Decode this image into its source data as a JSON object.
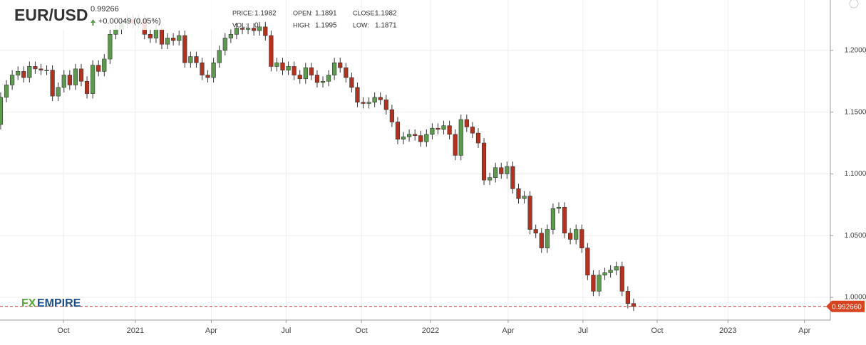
{
  "header": {
    "symbol": "EUR/USD",
    "price": "0.99266",
    "change": "+0.00049 (0.05%)",
    "info": [
      [
        "PRICE:",
        "1.1982"
      ],
      [
        "OPEN:",
        "1.1891"
      ],
      [
        "CLOSE:",
        "1.1982"
      ],
      [
        "VOL:",
        "0"
      ],
      [
        "HIGH:",
        "1.1995"
      ],
      [
        "LOW:",
        "1.1871"
      ]
    ],
    "logo": [
      "FX",
      "EMPIRE"
    ]
  },
  "chart_data": {
    "type": "candlestick",
    "up_color": "#5c9a4e",
    "down_color": "#b3321f",
    "grid": true,
    "xlim": [
      -0.12,
      144.2
    ],
    "ylim": [
      0.9816,
      1.2408
    ],
    "xticks": [
      {
        "value": 10.9,
        "label": "Oct"
      },
      {
        "value": 23.4,
        "label": "2021"
      },
      {
        "value": 36.6,
        "label": "Apr"
      },
      {
        "value": 49.6,
        "label": "Jul"
      },
      {
        "value": 62.7,
        "label": "Oct"
      },
      {
        "value": 74.7,
        "label": "2022"
      },
      {
        "value": 88.2,
        "label": "Apr"
      },
      {
        "value": 101.2,
        "label": "Jul"
      },
      {
        "value": 114.1,
        "label": "Oct"
      },
      {
        "value": 126.4,
        "label": "2023"
      },
      {
        "value": 139.7,
        "label": "Apr"
      }
    ],
    "yticks": [
      {
        "value": 1.0,
        "label": "1.0000"
      },
      {
        "value": 1.05,
        "label": "1.0500"
      },
      {
        "value": 1.1,
        "label": "1.1000"
      },
      {
        "value": 1.15,
        "label": "1.1500"
      },
      {
        "value": 1.2,
        "label": "1.2000"
      }
    ],
    "last_price": {
      "value": 0.99266,
      "label": "0.992660"
    },
    "x": [
      0,
      1,
      2,
      3,
      4,
      5,
      6,
      7,
      8,
      9,
      10,
      11,
      12,
      13,
      14,
      15,
      16,
      17,
      18,
      19,
      20,
      21,
      22,
      23,
      24,
      25,
      26,
      27,
      28,
      29,
      30,
      31,
      32,
      33,
      34,
      35,
      36,
      37,
      38,
      39,
      40,
      41,
      42,
      43,
      44,
      45,
      46,
      47,
      48,
      49,
      50,
      51,
      52,
      53,
      54,
      55,
      56,
      57,
      58,
      59,
      60,
      61,
      62,
      63,
      64,
      65,
      66,
      67,
      68,
      69,
      70,
      71,
      72,
      73,
      74,
      75,
      76,
      77,
      78,
      79,
      80,
      81,
      82,
      83,
      84,
      85,
      86,
      87,
      88,
      89,
      90,
      91,
      92,
      93,
      94,
      95,
      96,
      97,
      98,
      99,
      100,
      101,
      102,
      103,
      104,
      105,
      106,
      107,
      108,
      109,
      110
    ],
    "open": [
      1.14,
      1.162,
      1.172,
      1.18,
      1.183,
      1.178,
      1.187,
      1.185,
      1.184,
      1.184,
      1.163,
      1.17,
      1.18,
      1.172,
      1.185,
      1.175,
      1.165,
      1.188,
      1.183,
      1.193,
      1.213,
      1.217,
      1.222,
      1.225,
      1.222,
      1.225,
      1.213,
      1.21,
      1.217,
      1.205,
      1.21,
      1.208,
      1.212,
      1.19,
      1.195,
      1.19,
      1.18,
      1.178,
      1.19,
      1.2,
      1.21,
      1.213,
      1.218,
      1.217,
      1.218,
      1.216,
      1.219,
      1.212,
      1.187,
      1.19,
      1.184,
      1.187,
      1.18,
      1.177,
      1.186,
      1.18,
      1.174,
      1.175,
      1.18,
      1.19,
      1.186,
      1.178,
      1.17,
      1.158,
      1.157,
      1.158,
      1.162,
      1.16,
      1.152,
      1.142,
      1.128,
      1.13,
      1.132,
      1.131,
      1.126,
      1.132,
      1.137,
      1.136,
      1.139,
      1.132,
      1.115,
      1.144,
      1.138,
      1.133,
      1.125,
      1.095,
      1.097,
      1.105,
      1.1,
      1.106,
      1.088,
      1.08,
      1.082,
      1.055,
      1.052,
      1.04,
      1.055,
      1.072,
      1.073,
      1.052,
      1.047,
      1.055,
      1.04,
      1.018,
      1.005,
      1.018,
      1.02,
      1.022,
      1.025,
      1.005,
      0.995
    ],
    "high": [
      1.166,
      1.176,
      1.184,
      1.187,
      1.187,
      1.191,
      1.191,
      1.189,
      1.188,
      1.188,
      1.174,
      1.184,
      1.184,
      1.189,
      1.189,
      1.179,
      1.192,
      1.192,
      1.197,
      1.217,
      1.221,
      1.226,
      1.229,
      1.229,
      1.229,
      1.229,
      1.217,
      1.221,
      1.221,
      1.214,
      1.214,
      1.216,
      1.216,
      1.199,
      1.199,
      1.194,
      1.184,
      1.194,
      1.204,
      1.214,
      1.217,
      1.222,
      1.222,
      1.222,
      1.222,
      1.223,
      1.223,
      1.216,
      1.194,
      1.194,
      1.191,
      1.191,
      1.184,
      1.19,
      1.19,
      1.184,
      1.179,
      1.184,
      1.194,
      1.194,
      1.19,
      1.182,
      1.174,
      1.162,
      1.162,
      1.166,
      1.166,
      1.164,
      1.156,
      1.146,
      1.134,
      1.136,
      1.136,
      1.135,
      1.136,
      1.141,
      1.141,
      1.143,
      1.143,
      1.136,
      1.148,
      1.148,
      1.142,
      1.137,
      1.129,
      1.101,
      1.109,
      1.109,
      1.11,
      1.11,
      1.092,
      1.086,
      1.086,
      1.059,
      1.056,
      1.059,
      1.076,
      1.077,
      1.077,
      1.056,
      1.059,
      1.059,
      1.044,
      1.022,
      1.022,
      1.024,
      1.026,
      1.029,
      1.029,
      1.009,
      0.999
    ],
    "low": [
      1.136,
      1.158,
      1.168,
      1.176,
      1.174,
      1.174,
      1.181,
      1.18,
      1.18,
      1.159,
      1.159,
      1.166,
      1.168,
      1.168,
      1.171,
      1.161,
      1.161,
      1.179,
      1.179,
      1.189,
      1.209,
      1.213,
      1.218,
      1.218,
      1.218,
      1.209,
      1.206,
      1.206,
      1.201,
      1.201,
      1.204,
      1.204,
      1.186,
      1.186,
      1.186,
      1.176,
      1.174,
      1.174,
      1.186,
      1.196,
      1.206,
      1.209,
      1.213,
      1.213,
      1.212,
      1.212,
      1.208,
      1.183,
      1.183,
      1.18,
      1.18,
      1.176,
      1.173,
      1.173,
      1.176,
      1.17,
      1.17,
      1.171,
      1.176,
      1.182,
      1.174,
      1.166,
      1.154,
      1.153,
      1.153,
      1.154,
      1.156,
      1.148,
      1.138,
      1.124,
      1.124,
      1.126,
      1.127,
      1.122,
      1.122,
      1.128,
      1.132,
      1.132,
      1.128,
      1.111,
      1.111,
      1.134,
      1.129,
      1.121,
      1.091,
      1.091,
      1.093,
      1.096,
      1.096,
      1.084,
      1.076,
      1.076,
      1.051,
      1.048,
      1.036,
      1.036,
      1.051,
      1.068,
      1.048,
      1.043,
      1.043,
      1.036,
      1.014,
      1.001,
      1.001,
      1.014,
      1.016,
      1.018,
      1.001,
      0.991,
      0.989
    ],
    "close": [
      1.162,
      1.172,
      1.18,
      1.183,
      1.178,
      1.187,
      1.185,
      1.184,
      1.184,
      1.163,
      1.17,
      1.18,
      1.172,
      1.185,
      1.175,
      1.165,
      1.188,
      1.183,
      1.193,
      1.213,
      1.217,
      1.222,
      1.225,
      1.222,
      1.225,
      1.213,
      1.21,
      1.217,
      1.205,
      1.21,
      1.208,
      1.212,
      1.19,
      1.195,
      1.19,
      1.18,
      1.178,
      1.19,
      1.2,
      1.21,
      1.213,
      1.218,
      1.217,
      1.218,
      1.216,
      1.219,
      1.212,
      1.187,
      1.19,
      1.184,
      1.187,
      1.18,
      1.177,
      1.186,
      1.18,
      1.174,
      1.175,
      1.18,
      1.19,
      1.186,
      1.178,
      1.17,
      1.158,
      1.157,
      1.158,
      1.162,
      1.16,
      1.152,
      1.142,
      1.128,
      1.13,
      1.132,
      1.131,
      1.126,
      1.132,
      1.137,
      1.136,
      1.139,
      1.132,
      1.115,
      1.144,
      1.138,
      1.133,
      1.125,
      1.095,
      1.097,
      1.105,
      1.1,
      1.106,
      1.088,
      1.08,
      1.082,
      1.055,
      1.052,
      1.04,
      1.055,
      1.072,
      1.073,
      1.052,
      1.047,
      1.055,
      1.04,
      1.018,
      1.005,
      1.018,
      1.02,
      1.022,
      1.025,
      1.005,
      0.995,
      0.99266
    ]
  }
}
